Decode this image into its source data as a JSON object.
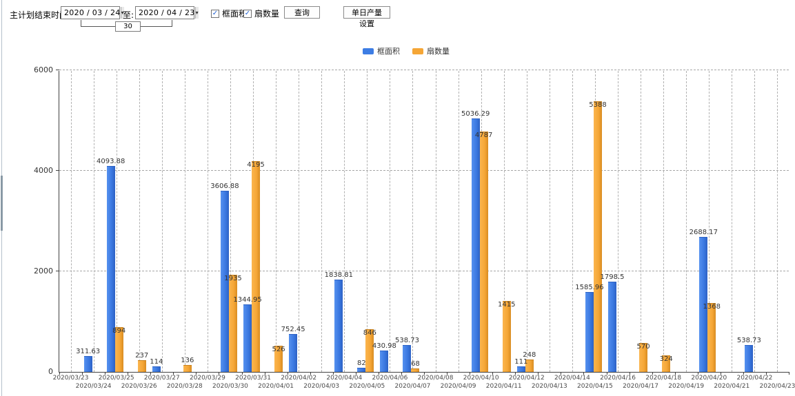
{
  "toolbar": {
    "end_time_label": "主计划结束时间:",
    "date_from": "2020 / 03 / 24",
    "to_label": "至:",
    "date_to": "2020 / 04 / 23",
    "interval_days": "30",
    "checkbox_frame_area": {
      "label": "框面积",
      "checked": true
    },
    "checkbox_fan_count": {
      "label": "扇数量",
      "checked": true
    },
    "query_button": "查询",
    "daily_output_button": "单日产量设置"
  },
  "icons": {
    "check": "✓",
    "dropdown": "▾"
  },
  "legend": {
    "items": [
      {
        "label": "框面积",
        "color": "#3d7de4"
      },
      {
        "label": "扇数量",
        "color": "#f5a636"
      }
    ]
  },
  "chart_data": {
    "type": "bar",
    "title": "",
    "xlabel": "",
    "ylabel": "",
    "ylim": [
      0,
      6000
    ],
    "yticks": [
      0,
      2000,
      4000,
      6000
    ],
    "grid": "dashed",
    "legend_position": "top",
    "categories": [
      "2020/03/23",
      "2020/03/24",
      "2020/03/25",
      "2020/03/26",
      "2020/03/27",
      "2020/03/28",
      "2020/03/29",
      "2020/03/30",
      "2020/03/31",
      "2020/04/01",
      "2020/04/02",
      "2020/04/03",
      "2020/04/04",
      "2020/04/05",
      "2020/04/06",
      "2020/04/07",
      "2020/04/08",
      "2020/04/09",
      "2020/04/10",
      "2020/04/11",
      "2020/04/12",
      "2020/04/13",
      "2020/04/14",
      "2020/04/15",
      "2020/04/16",
      "2020/04/17",
      "2020/04/18",
      "2020/04/19",
      "2020/04/20",
      "2020/04/21",
      "2020/04/22",
      "2020/04/23"
    ],
    "series": [
      {
        "name": "框面积",
        "color": "#3d7de4",
        "values": [
          null,
          311.63,
          4093.88,
          null,
          114,
          null,
          null,
          3606.88,
          1344.95,
          null,
          752.45,
          null,
          1838.81,
          82,
          430.98,
          538.73,
          null,
          null,
          5036.29,
          null,
          111,
          null,
          null,
          1585.96,
          1798.5,
          null,
          null,
          null,
          2688.17,
          null,
          538.73,
          null
        ]
      },
      {
        "name": "扇数量",
        "color": "#f5a636",
        "values": [
          null,
          null,
          894,
          237,
          null,
          136,
          null,
          1935,
          4195,
          526,
          null,
          null,
          null,
          846,
          null,
          68,
          null,
          null,
          4787,
          1415,
          248,
          null,
          null,
          5388,
          null,
          570,
          324,
          null,
          1368,
          null,
          null,
          null
        ]
      }
    ]
  }
}
